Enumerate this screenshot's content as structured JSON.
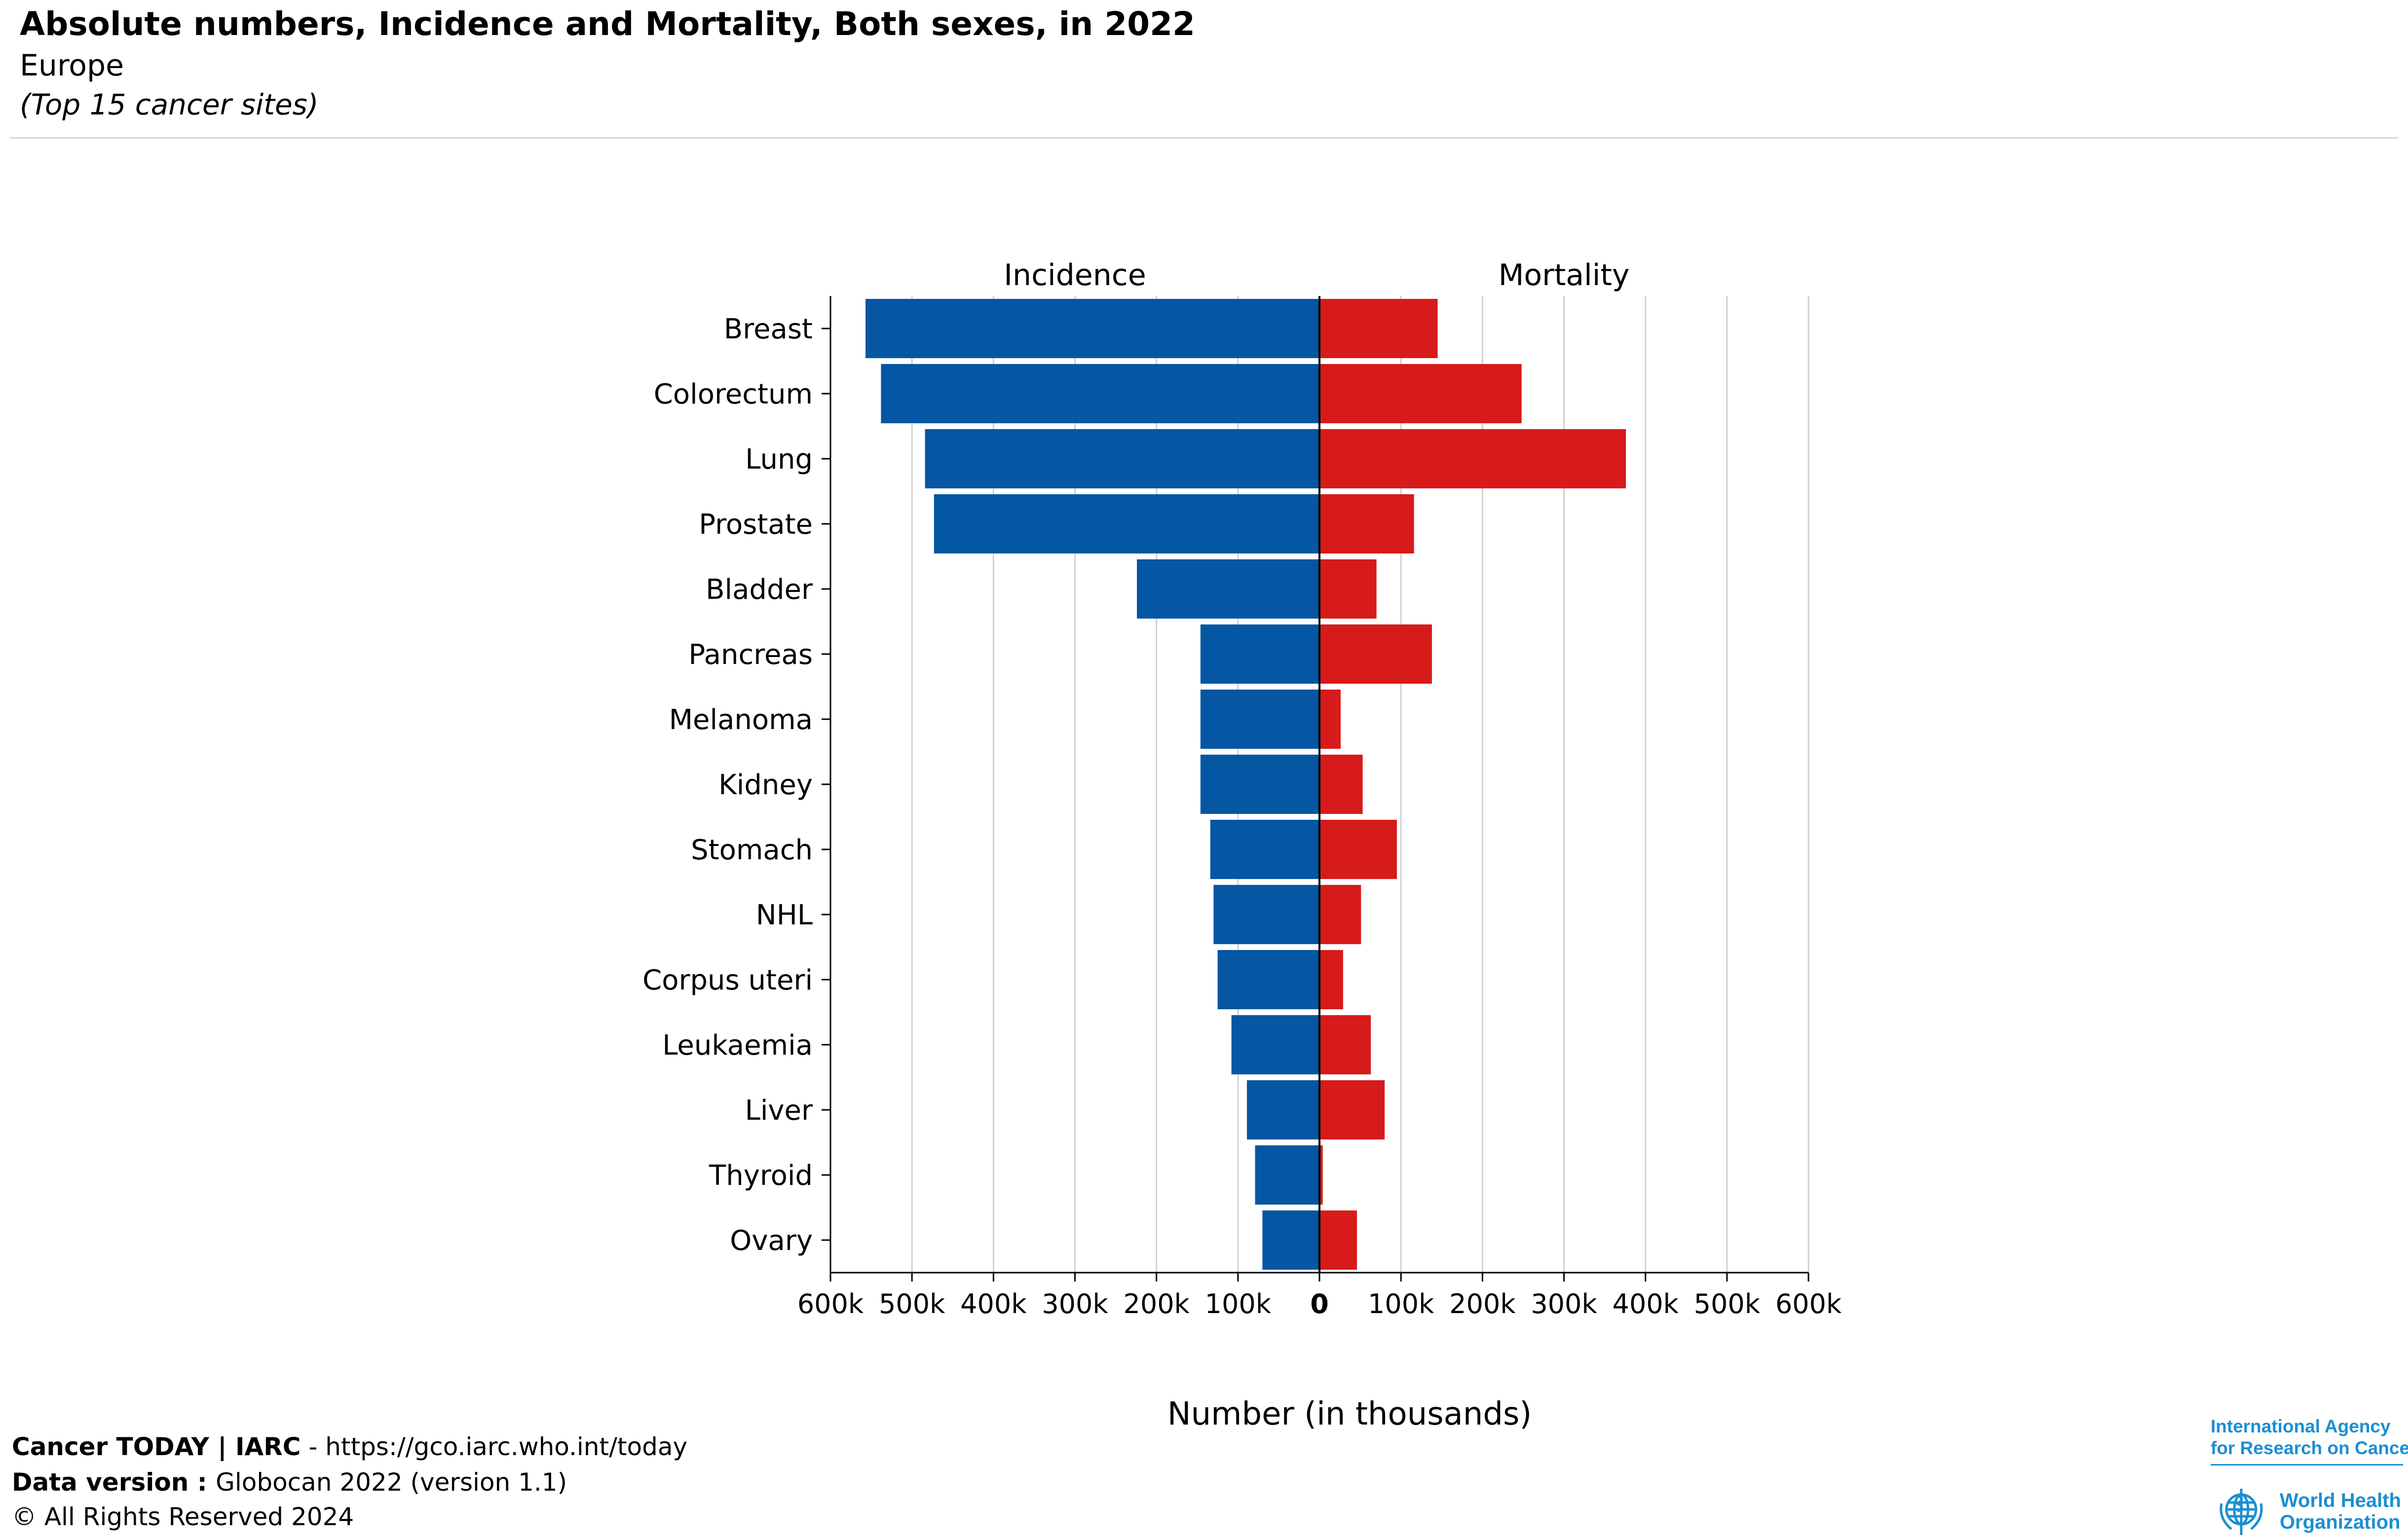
{
  "header": {
    "title": "Absolute numbers, Incidence and Mortality, Both sexes, in 2022",
    "subtitle": "Europe",
    "note": "(Top 15 cancer sites)"
  },
  "colors": {
    "incidence": "#0556a3",
    "mortality": "#d71a1a",
    "grid": "#d0d0d0"
  },
  "chart_data": {
    "type": "bar",
    "orientation": "horizontal-butterfly",
    "left_label": "Incidence",
    "right_label": "Mortality",
    "xlabel": "Number (in thousands)",
    "xlim": [
      -600000,
      600000
    ],
    "ticks": [
      {
        "value": -600000,
        "label": "600k"
      },
      {
        "value": -500000,
        "label": "500k"
      },
      {
        "value": -400000,
        "label": "400k"
      },
      {
        "value": -300000,
        "label": "300k"
      },
      {
        "value": -200000,
        "label": "200k"
      },
      {
        "value": -100000,
        "label": "100k"
      },
      {
        "value": 0,
        "label": "0"
      },
      {
        "value": 100000,
        "label": "100k"
      },
      {
        "value": 200000,
        "label": "200k"
      },
      {
        "value": 300000,
        "label": "300k"
      },
      {
        "value": 400000,
        "label": "400k"
      },
      {
        "value": 500000,
        "label": "500k"
      },
      {
        "value": 600000,
        "label": "600k"
      }
    ],
    "categories": [
      "Breast",
      "Colorectum",
      "Lung",
      "Prostate",
      "Bladder",
      "Pancreas",
      "Melanoma",
      "Kidney",
      "Stomach",
      "NHL",
      "Corpus uteri",
      "Leukaemia",
      "Liver",
      "Thyroid",
      "Ovary"
    ],
    "series": [
      {
        "name": "Incidence",
        "values": [
          557000,
          538000,
          484000,
          473000,
          224000,
          146000,
          146000,
          146000,
          134000,
          130000,
          125000,
          108000,
          89000,
          79000,
          70000
        ]
      },
      {
        "name": "Mortality",
        "values": [
          145000,
          248000,
          376000,
          116000,
          70000,
          138000,
          26000,
          53000,
          95000,
          51000,
          29000,
          63000,
          80000,
          4000,
          46000
        ]
      }
    ]
  },
  "footer": {
    "line1_bold": "Cancer TODAY | IARC",
    "line1_rest": " - https://gco.iarc.who.int/today",
    "line2_bold": "Data version : ",
    "line2_rest": "Globocan 2022 (version 1.1)",
    "line3": "© All Rights Reserved 2024"
  },
  "logos": {
    "iarc_line1": "International Agency",
    "iarc_line2": "for Research on Cancer",
    "who_line1": "World Health",
    "who_line2": "Organization",
    "who_emblem": "who-emblem-icon"
  }
}
